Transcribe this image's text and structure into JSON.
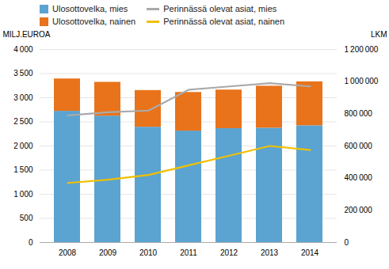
{
  "chart_data": {
    "type": "bar",
    "stacked": true,
    "categories": [
      "2008",
      "2009",
      "2010",
      "2011",
      "2012",
      "2013",
      "2014"
    ],
    "series": [
      {
        "name": "Ulosottovelka, mies",
        "type": "bar",
        "color": "#5ba3d0",
        "values": [
          2720,
          2620,
          2390,
          2310,
          2360,
          2370,
          2420
        ]
      },
      {
        "name": "Ulosottovelka, nainen",
        "type": "bar",
        "color": "#e8731a",
        "values": [
          670,
          700,
          760,
          800,
          800,
          870,
          910
        ]
      },
      {
        "name": "Perinnässä olevat asiat, mies",
        "type": "line",
        "axis": "y2",
        "color": "#aaaaaa",
        "values": [
          790000,
          810000,
          820000,
          950000,
          970000,
          990000,
          970000
        ]
      },
      {
        "name": "Perinnässä olevat asiat, nainen",
        "type": "line",
        "axis": "y2",
        "color": "#f0c000",
        "values": [
          370000,
          390000,
          420000,
          480000,
          540000,
          600000,
          575000
        ]
      }
    ],
    "ylabel": "MILJ.EUROA",
    "y2label": "LKM",
    "ylim": [
      0,
      4000
    ],
    "yticks": [
      0,
      500,
      {
        "value": 1000,
        "label": "1 000"
      },
      {
        "value": 1500,
        "label": "1 500"
      },
      {
        "value": 2000,
        "label": "2 000"
      },
      {
        "value": 2500,
        "label": "2 500"
      },
      {
        "value": 3000,
        "label": "3 000"
      },
      {
        "value": 3500,
        "label": "3 500"
      },
      {
        "value": 4000,
        "label": "4 000"
      }
    ],
    "y2lim": [
      0,
      1200000
    ],
    "y2ticks": [
      0,
      {
        "value": 200000,
        "label": "200 000"
      },
      {
        "value": 400000,
        "label": "400 000"
      },
      {
        "value": 600000,
        "label": "600 000"
      },
      {
        "value": 800000,
        "label": "800 000"
      },
      {
        "value": 1000000,
        "label": "1 000 000"
      },
      {
        "value": 1200000,
        "label": "1 200 000"
      }
    ],
    "grid": true,
    "legend": "top"
  }
}
